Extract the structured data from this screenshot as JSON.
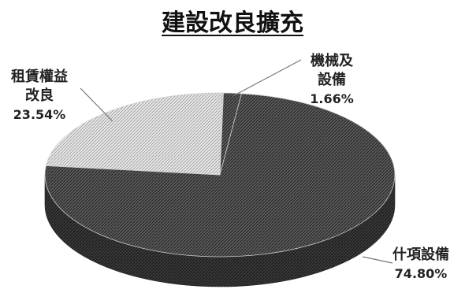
{
  "chart_data": {
    "type": "pie",
    "style": "3d",
    "title": "建設改良擴充",
    "slices": [
      {
        "label": "機械及設備",
        "value": 1.66,
        "value_label": "1.66%",
        "color": "#6a6a6a"
      },
      {
        "label": "什項設備",
        "value": 74.8,
        "value_label": "74.80%",
        "color": "#555555"
      },
      {
        "label": "租賃權益改良",
        "value": 23.54,
        "value_label": "23.54%",
        "color": "#d8d8d8"
      }
    ],
    "legend": "none"
  }
}
